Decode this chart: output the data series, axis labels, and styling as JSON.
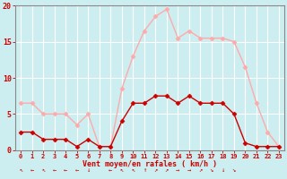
{
  "hours": [
    0,
    1,
    2,
    3,
    4,
    5,
    6,
    7,
    8,
    9,
    10,
    11,
    12,
    13,
    14,
    15,
    16,
    17,
    18,
    19,
    20,
    21,
    22,
    23
  ],
  "wind_avg": [
    2.5,
    2.5,
    1.5,
    1.5,
    1.5,
    0.5,
    1.5,
    0.5,
    0.5,
    4.0,
    6.5,
    6.5,
    7.5,
    7.5,
    6.5,
    7.5,
    6.5,
    6.5,
    6.5,
    5.0,
    1.0,
    0.5,
    0.5,
    0.5
  ],
  "wind_gust": [
    6.5,
    6.5,
    5.0,
    5.0,
    5.0,
    3.5,
    5.0,
    0.5,
    0.5,
    8.5,
    13.0,
    16.5,
    18.5,
    19.5,
    15.5,
    16.5,
    15.5,
    15.5,
    15.5,
    15.0,
    11.5,
    6.5,
    2.5,
    0.5
  ],
  "wind_avg_color": "#cc0000",
  "wind_gust_color": "#ffaaaa",
  "background_color": "#cceef0",
  "grid_color": "#ffffff",
  "xlabel": "Vent moyen/en rafales ( km/h )",
  "xlabel_color": "#cc0000",
  "tick_color": "#cc0000",
  "axis_color": "#888888",
  "ylim": [
    0,
    20
  ],
  "yticks": [
    0,
    5,
    10,
    15,
    20
  ],
  "marker": "D",
  "markersize": 2.5,
  "linewidth": 1.0,
  "arrow_symbols": [
    "↖",
    "←",
    "↖",
    "←",
    "←",
    "←",
    "↓",
    " ",
    "←",
    "↖",
    "↖",
    "↑",
    "↗",
    "↗",
    "→",
    "→",
    "↗",
    "↘",
    "↓",
    "↘",
    " ",
    " ",
    " ",
    " "
  ]
}
